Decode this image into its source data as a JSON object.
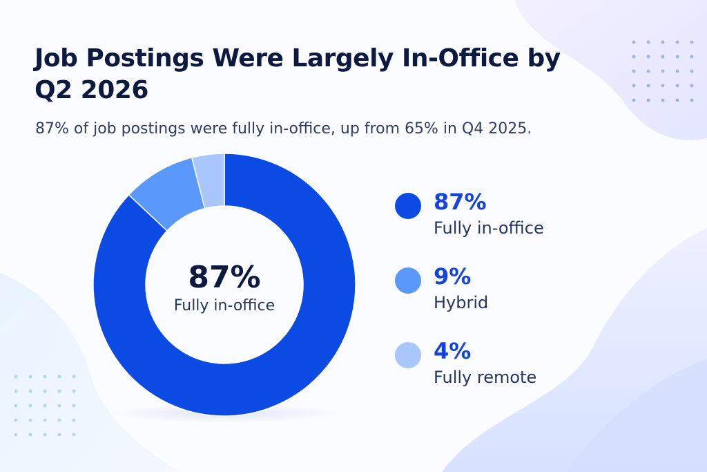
{
  "title": "Job Postings Were Largely In-Office by Q2 2026",
  "subtitle": "87% of job postings were fully in-office, up from 65% in Q4 2025.",
  "colors": {
    "fully_in_office": "#0b4be3",
    "hybrid": "#5b98fb",
    "fully_remote": "#a9c6fd",
    "title": "#0c1a3f",
    "accent_text": "#1543e0"
  },
  "chart_data": {
    "type": "pie",
    "title": "Job Postings Were Largely In-Office by Q2 2026",
    "categories": [
      "Fully in-office",
      "Hybrid",
      "Fully remote"
    ],
    "values": [
      87,
      9,
      4
    ],
    "unit": "%",
    "center_value": "87%",
    "center_label": "Fully in-office",
    "legend_placement": "right"
  },
  "legend": [
    {
      "value": "87%",
      "label": "Fully in-office"
    },
    {
      "value": "9%",
      "label": "Hybrid"
    },
    {
      "value": "4%",
      "label": "Fully remote"
    }
  ]
}
